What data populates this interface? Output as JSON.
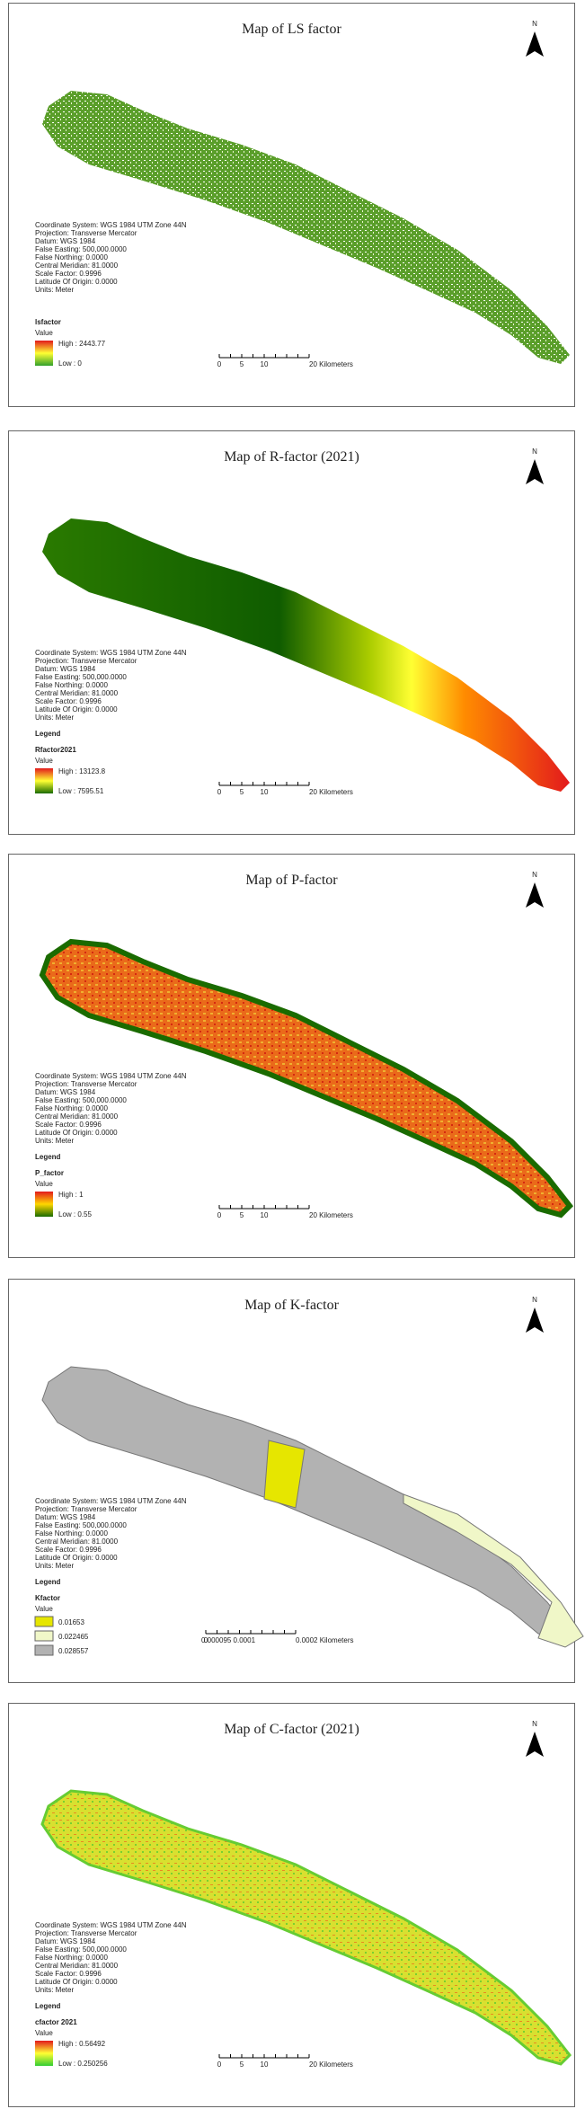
{
  "maps": [
    {
      "title": "Map of LS factor",
      "north": "N",
      "coordinate_info": [
        "Coordinate System: WGS 1984 UTM Zone 44N",
        "Projection: Transverse Mercator",
        "Datum: WGS 1984",
        "False Easting: 500,000.0000",
        "False Northing: 0.0000",
        "Central Meridian: 81.0000",
        "Scale Factor: 0.9996",
        "Latitude Of Origin: 0.0000",
        "Units: Meter"
      ],
      "layer": "lsfactor",
      "value_label": "Value",
      "high": "High : 2443.77",
      "low": "Low : 0",
      "colors": [
        "#e31a1c",
        "#ffff33",
        "#33a02c"
      ],
      "scale_labels": [
        "0",
        "5",
        "10",
        "20 Kilometers"
      ]
    },
    {
      "title": "Map of R-factor (2021)",
      "north": "N",
      "coordinate_info": [
        "Coordinate System: WGS 1984 UTM Zone 44N",
        "Projection: Transverse Mercator",
        "Datum: WGS 1984",
        "False Easting: 500,000.0000",
        "False Northing: 0.0000",
        "Central Meridian: 81.0000",
        "Scale Factor: 0.9996",
        "Latitude Of Origin: 0.0000",
        "Units: Meter"
      ],
      "legend_heading": "Legend",
      "layer": "Rfactor2021",
      "value_label": "Value",
      "high": "High : 13123.8",
      "low": "Low : 7595.51",
      "colors": [
        "#e31a1c",
        "#ffff33",
        "#1a6b00"
      ],
      "scale_labels": [
        "0",
        "5",
        "10",
        "20 Kilometers"
      ]
    },
    {
      "title": "Map of P-factor",
      "north": "N",
      "coordinate_info": [
        "Coordinate System: WGS 1984 UTM Zone 44N",
        "Projection: Transverse Mercator",
        "Datum: WGS 1984",
        "False Easting: 500,000.0000",
        "False Northing: 0.0000",
        "Central Meridian: 81.0000",
        "Scale Factor: 0.9996",
        "Latitude Of Origin: 0.0000",
        "Units: Meter"
      ],
      "legend_heading": "Legend",
      "layer": "P_factor",
      "value_label": "Value",
      "high": "High : 1",
      "low": "Low : 0.55",
      "colors": [
        "#e31a1c",
        "#ffd700",
        "#1a6b00"
      ],
      "scale_labels": [
        "0",
        "5",
        "10",
        "20 Kilometers"
      ]
    },
    {
      "title": "Map of K-factor",
      "north": "N",
      "coordinate_info": [
        "Coordinate System: WGS 1984 UTM Zone 44N",
        "Projection: Transverse Mercator",
        "Datum: WGS 1984",
        "False Easting: 500,000.0000",
        "False Northing: 0.0000",
        "Central Meridian: 81.0000",
        "Scale Factor: 0.9996",
        "Latitude Of Origin: 0.0000",
        "Units: Meter"
      ],
      "legend_heading": "Legend",
      "layer": "Kfactor",
      "value_label": "Value",
      "classes": [
        {
          "label": "0.01653",
          "color": "#e6e600"
        },
        {
          "label": "0.022465",
          "color": "#f0f7c8"
        },
        {
          "label": "0.028557",
          "color": "#b2b2b2"
        }
      ],
      "scale_labels": [
        "0",
        "0.000095 0.0001",
        "",
        "0.0002 Kilometers"
      ]
    },
    {
      "title": "Map of C-factor (2021)",
      "north": "N",
      "coordinate_info": [
        "Coordinate System: WGS 1984 UTM Zone 44N",
        "Projection: Transverse Mercator",
        "Datum: WGS 1984",
        "False Easting: 500,000.0000",
        "False Northing: 0.0000",
        "Central Meridian: 81.0000",
        "Scale Factor: 0.9996",
        "Latitude Of Origin: 0.0000",
        "Units: Meter"
      ],
      "legend_heading": "Legend",
      "layer": "cfactor 2021",
      "value_label": "Value",
      "high": "High : 0.56492",
      "low": "Low : 0.250256",
      "colors": [
        "#e31a1c",
        "#ffff33",
        "#33cc33"
      ],
      "scale_labels": [
        "0",
        "5",
        "10",
        "20 Kilometers"
      ]
    }
  ]
}
